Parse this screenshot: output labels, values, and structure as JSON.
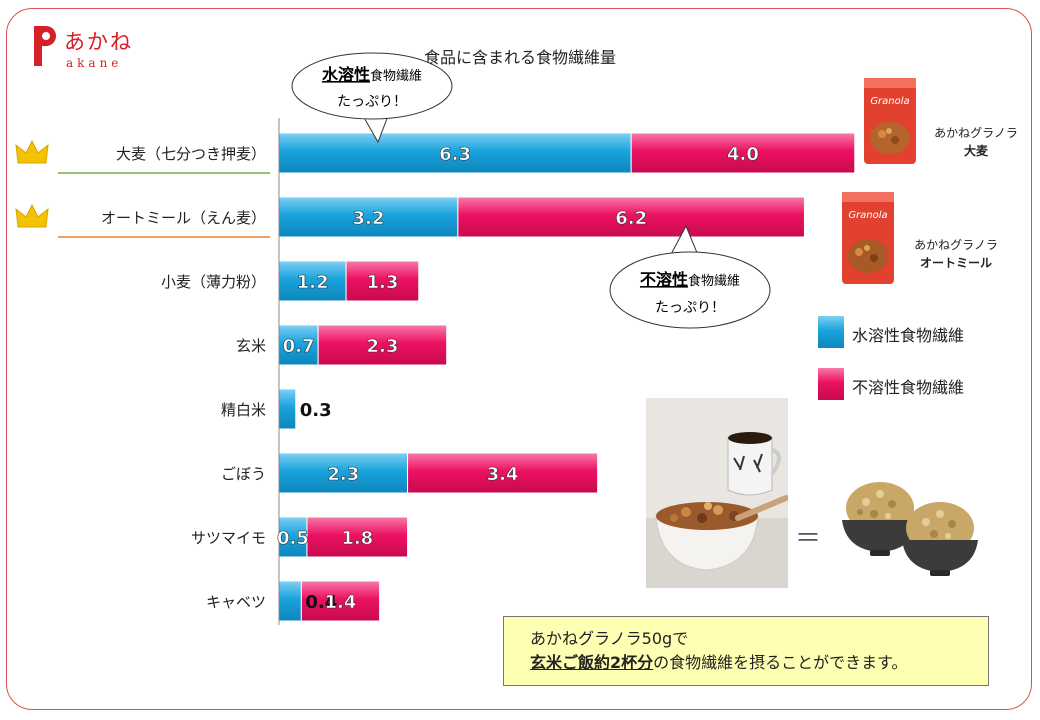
{
  "brand": {
    "jp": "あかね",
    "en": "akane"
  },
  "colors": {
    "water": "#1aa3dd",
    "insoluble": "#ec1162",
    "accent": "#d62027"
  },
  "chart_data": {
    "type": "bar",
    "orientation": "horizontal",
    "stacked": true,
    "title": "食品に含まれる食物繊維量",
    "categories": [
      "大麦（七分つき押麦）",
      "オートミール（えん麦）",
      "小麦（薄力粉）",
      "玄米",
      "精白米",
      "ごぼう",
      "サツマイモ",
      "キャベツ"
    ],
    "series": [
      {
        "name": "水溶性食物繊維",
        "values": [
          6.3,
          3.2,
          1.2,
          0.7,
          0.3,
          2.3,
          0.5,
          0.4
        ]
      },
      {
        "name": "不溶性食物繊維",
        "values": [
          4.0,
          6.2,
          1.3,
          2.3,
          0.0,
          3.4,
          1.8,
          1.4
        ]
      }
    ],
    "data_labels": [
      [
        "6.3",
        "4.0"
      ],
      [
        "3.2",
        "6.2"
      ],
      [
        "1.2",
        "1.3"
      ],
      [
        "0.7",
        "2.3"
      ],
      [
        "0.3",
        ""
      ],
      [
        "2.3",
        "3.4"
      ],
      [
        "0.5",
        "1.8"
      ],
      [
        "0.4",
        "1.4"
      ]
    ],
    "highlight": [
      0,
      1
    ],
    "xlim": [
      0,
      10.5
    ],
    "legend_position": "right"
  },
  "bubbles": {
    "water": {
      "strong": "水溶性",
      "rest": "食物繊維",
      "line2": "たっぷり！"
    },
    "insoluble": {
      "strong": "不溶性",
      "rest": "食物繊維",
      "line2": "たっぷり！"
    }
  },
  "products": [
    {
      "line1": "あかねグラノラ",
      "line2": "大麦",
      "pack": "Granola"
    },
    {
      "line1": "あかねグラノラ",
      "line2": "オートミール",
      "pack": "Granola"
    }
  ],
  "note": {
    "line1": "あかねグラノラ50gで",
    "line2_strong": "玄米ご飯約2杯分",
    "line2_rest": "の食物繊維を摂ることができます。"
  },
  "equals": "＝"
}
